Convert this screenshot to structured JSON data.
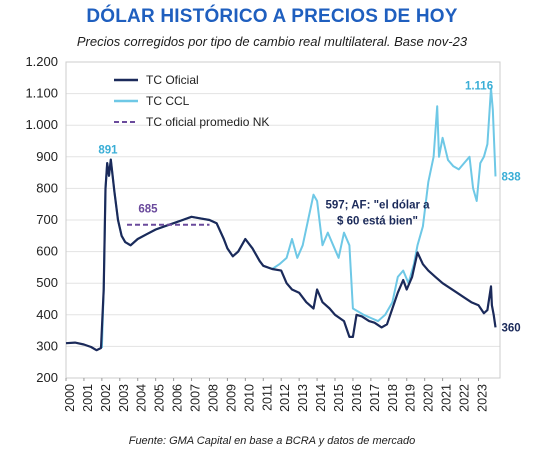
{
  "title": "DÓLAR HISTÓRICO A PRECIOS DE HOY",
  "subtitle": "Precios corregidos por tipo de cambio real multilateral. Base nov-23",
  "source": "Fuente: GMA Capital en base a BCRA y datos de mercado",
  "colors": {
    "official": "#1b2a5a",
    "ccl": "#6ec8e6",
    "nk_avg": "#6a4a9c",
    "title": "#1f5fbf",
    "ann_ccl": "#3aaed6"
  },
  "chart_data": {
    "type": "line",
    "xlim": [
      2000,
      2024.2
    ],
    "ylim": [
      200,
      1200
    ],
    "y_ticks": [
      "200",
      "300",
      "400",
      "500",
      "600",
      "700",
      "800",
      "900",
      "1.000",
      "1.100",
      "1.200"
    ],
    "x_ticks": [
      "2000",
      "2001",
      "2002",
      "2003",
      "2004",
      "2005",
      "2006",
      "2007",
      "2008",
      "2009",
      "2010",
      "2011",
      "2012",
      "2013",
      "2014",
      "2015",
      "2016",
      "2017",
      "2018",
      "2019",
      "2020",
      "2021",
      "2022",
      "2023"
    ],
    "legend": {
      "position": "top-left",
      "official": "TC Oficial",
      "ccl": "TC CCL",
      "nk_avg": "TC oficial promedio NK"
    },
    "series": [
      {
        "name": "TC Oficial",
        "points": [
          [
            2000.0,
            310
          ],
          [
            2000.5,
            312
          ],
          [
            2001.0,
            306
          ],
          [
            2001.4,
            298
          ],
          [
            2001.7,
            288
          ],
          [
            2001.95,
            295
          ],
          [
            2002.1,
            480
          ],
          [
            2002.2,
            800
          ],
          [
            2002.3,
            880
          ],
          [
            2002.4,
            840
          ],
          [
            2002.5,
            891
          ],
          [
            2002.7,
            790
          ],
          [
            2002.9,
            700
          ],
          [
            2003.1,
            650
          ],
          [
            2003.3,
            630
          ],
          [
            2003.6,
            620
          ],
          [
            2004.0,
            640
          ],
          [
            2004.5,
            655
          ],
          [
            2005.0,
            670
          ],
          [
            2005.5,
            680
          ],
          [
            2006.0,
            690
          ],
          [
            2006.5,
            700
          ],
          [
            2007.0,
            710
          ],
          [
            2007.5,
            705
          ],
          [
            2008.0,
            700
          ],
          [
            2008.4,
            690
          ],
          [
            2008.8,
            640
          ],
          [
            2009.0,
            610
          ],
          [
            2009.3,
            585
          ],
          [
            2009.6,
            600
          ],
          [
            2010.0,
            640
          ],
          [
            2010.4,
            610
          ],
          [
            2010.8,
            570
          ],
          [
            2011.0,
            555
          ],
          [
            2011.5,
            545
          ],
          [
            2012.0,
            540
          ],
          [
            2012.3,
            500
          ],
          [
            2012.6,
            480
          ],
          [
            2013.0,
            470
          ],
          [
            2013.4,
            440
          ],
          [
            2013.8,
            420
          ],
          [
            2014.0,
            480
          ],
          [
            2014.3,
            440
          ],
          [
            2014.7,
            420
          ],
          [
            2015.0,
            400
          ],
          [
            2015.5,
            380
          ],
          [
            2015.8,
            330
          ],
          [
            2016.0,
            330
          ],
          [
            2016.2,
            400
          ],
          [
            2016.5,
            395
          ],
          [
            2016.9,
            380
          ],
          [
            2017.2,
            375
          ],
          [
            2017.6,
            360
          ],
          [
            2017.9,
            370
          ],
          [
            2018.2,
            420
          ],
          [
            2018.5,
            470
          ],
          [
            2018.8,
            510
          ],
          [
            2019.0,
            480
          ],
          [
            2019.3,
            520
          ],
          [
            2019.6,
            597
          ],
          [
            2019.9,
            560
          ],
          [
            2020.2,
            540
          ],
          [
            2020.6,
            520
          ],
          [
            2021.0,
            500
          ],
          [
            2021.4,
            485
          ],
          [
            2021.8,
            470
          ],
          [
            2022.2,
            455
          ],
          [
            2022.6,
            440
          ],
          [
            2023.0,
            430
          ],
          [
            2023.3,
            405
          ],
          [
            2023.5,
            415
          ],
          [
            2023.7,
            490
          ],
          [
            2023.75,
            430
          ],
          [
            2023.85,
            400
          ],
          [
            2023.95,
            360
          ]
        ]
      },
      {
        "name": "TC CCL",
        "points": [
          [
            2002.0,
            295
          ],
          [
            2002.1,
            480
          ],
          [
            2002.2,
            800
          ],
          [
            2002.3,
            880
          ],
          [
            2002.4,
            840
          ],
          [
            2002.5,
            891
          ],
          [
            2002.7,
            790
          ],
          [
            2002.9,
            700
          ],
          [
            2003.1,
            650
          ],
          [
            2003.3,
            630
          ],
          [
            2003.6,
            620
          ],
          [
            2004.0,
            640
          ],
          [
            2004.5,
            655
          ],
          [
            2005.0,
            670
          ],
          [
            2005.5,
            680
          ],
          [
            2006.0,
            690
          ],
          [
            2006.5,
            700
          ],
          [
            2007.0,
            710
          ],
          [
            2007.5,
            705
          ],
          [
            2008.0,
            700
          ],
          [
            2008.4,
            690
          ],
          [
            2008.8,
            640
          ],
          [
            2009.0,
            610
          ],
          [
            2009.3,
            585
          ],
          [
            2009.6,
            600
          ],
          [
            2010.0,
            640
          ],
          [
            2010.4,
            610
          ],
          [
            2010.8,
            570
          ],
          [
            2011.0,
            555
          ],
          [
            2011.5,
            545
          ],
          [
            2011.9,
            560
          ],
          [
            2012.3,
            580
          ],
          [
            2012.6,
            640
          ],
          [
            2012.9,
            580
          ],
          [
            2013.2,
            620
          ],
          [
            2013.5,
            700
          ],
          [
            2013.8,
            780
          ],
          [
            2014.0,
            760
          ],
          [
            2014.3,
            620
          ],
          [
            2014.6,
            660
          ],
          [
            2014.9,
            620
          ],
          [
            2015.2,
            580
          ],
          [
            2015.5,
            660
          ],
          [
            2015.8,
            620
          ],
          [
            2016.0,
            420
          ],
          [
            2016.3,
            410
          ],
          [
            2016.6,
            400
          ],
          [
            2017.0,
            390
          ],
          [
            2017.4,
            380
          ],
          [
            2017.8,
            400
          ],
          [
            2018.2,
            440
          ],
          [
            2018.5,
            520
          ],
          [
            2018.8,
            540
          ],
          [
            2019.1,
            500
          ],
          [
            2019.4,
            560
          ],
          [
            2019.6,
            620
          ],
          [
            2019.9,
            680
          ],
          [
            2020.2,
            820
          ],
          [
            2020.5,
            900
          ],
          [
            2020.7,
            1060
          ],
          [
            2020.8,
            900
          ],
          [
            2021.0,
            960
          ],
          [
            2021.3,
            890
          ],
          [
            2021.6,
            870
          ],
          [
            2021.9,
            860
          ],
          [
            2022.2,
            880
          ],
          [
            2022.5,
            900
          ],
          [
            2022.7,
            800
          ],
          [
            2022.9,
            760
          ],
          [
            2023.1,
            880
          ],
          [
            2023.3,
            900
          ],
          [
            2023.5,
            940
          ],
          [
            2023.7,
            1116
          ],
          [
            2023.8,
            1050
          ],
          [
            2023.95,
            838
          ]
        ]
      },
      {
        "name": "TC oficial promedio NK",
        "points": [
          [
            2003.4,
            685
          ],
          [
            2008.0,
            685
          ]
        ]
      }
    ],
    "annotations": [
      {
        "id": "peak_2002",
        "text": "891",
        "x": 2002.45,
        "y": 891,
        "series": "TC Oficial"
      },
      {
        "id": "nk_avg",
        "text": "685",
        "x": 2003.7,
        "y": 685,
        "series": "TC oficial promedio NK"
      },
      {
        "id": "af_line1",
        "text": "597; AF: \"el dólar a",
        "x": 2019.6,
        "y": 597
      },
      {
        "id": "af_line2",
        "text": "$ 60 está bien\"",
        "x": 2019.6,
        "y": 597
      },
      {
        "id": "ccl_peak",
        "text": "1.116",
        "x": 2023.7,
        "y": 1116,
        "series": "TC CCL"
      },
      {
        "id": "ccl_last",
        "text": "838",
        "x": 2023.95,
        "y": 838,
        "series": "TC CCL"
      },
      {
        "id": "official_last",
        "text": "360",
        "x": 2023.95,
        "y": 360,
        "series": "TC Oficial"
      }
    ]
  }
}
